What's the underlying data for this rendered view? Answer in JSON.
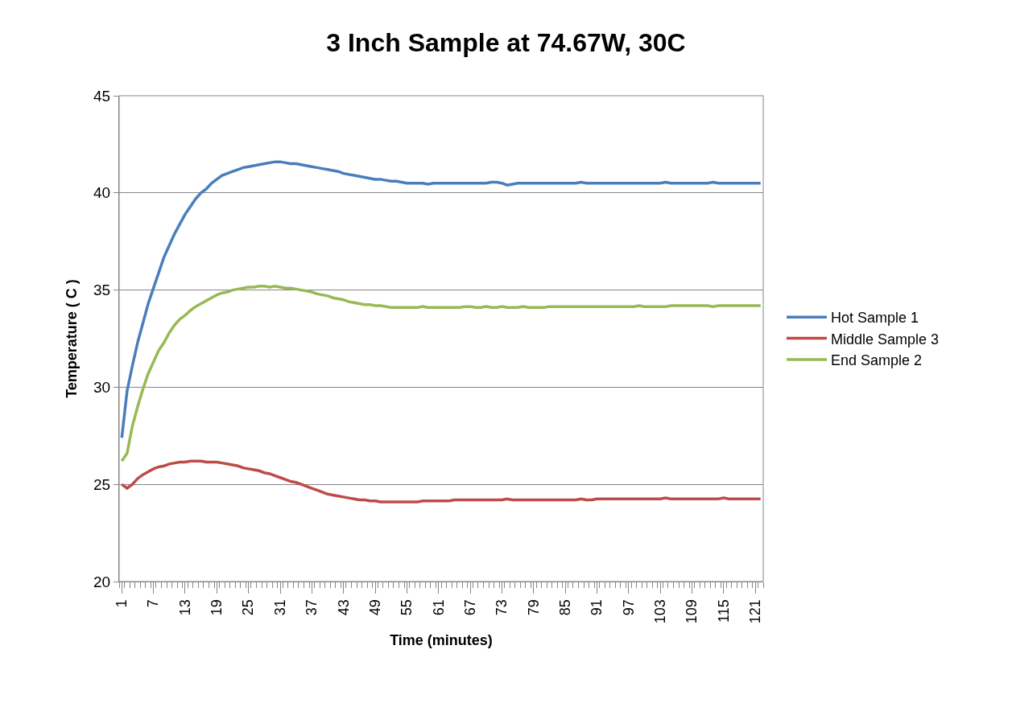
{
  "chart_data": {
    "type": "line",
    "title": "3 Inch Sample at 74.67W, 30C",
    "xlabel": "Time (minutes)",
    "ylabel": "Temperature ( C )",
    "categories": [
      "1",
      null,
      null,
      null,
      null,
      null,
      "7",
      null,
      null,
      null,
      null,
      null,
      "13",
      null,
      null,
      null,
      null,
      null,
      "19",
      null,
      null,
      null,
      null,
      null,
      "25",
      null,
      null,
      null,
      null,
      null,
      "31",
      null,
      null,
      null,
      null,
      null,
      "37",
      null,
      null,
      null,
      null,
      null,
      "43",
      null,
      null,
      null,
      null,
      null,
      "49",
      null,
      null,
      null,
      null,
      null,
      "55",
      null,
      null,
      null,
      null,
      null,
      "61",
      null,
      null,
      null,
      null,
      null,
      "67",
      null,
      null,
      null,
      null,
      null,
      "73",
      null,
      null,
      null,
      null,
      null,
      "79",
      null,
      null,
      null,
      null,
      null,
      "85",
      null,
      null,
      null,
      null,
      null,
      "91",
      null,
      null,
      null,
      null,
      null,
      "97",
      null,
      null,
      null,
      null,
      null,
      "103",
      null,
      null,
      null,
      null,
      null,
      "109",
      null,
      null,
      null,
      null,
      null,
      "115",
      null,
      null,
      null,
      null,
      null,
      "121",
      null
    ],
    "series": [
      {
        "name": "Hot Sample 1",
        "color": "#4a7ebb",
        "values": [
          27.4,
          29.8,
          31.1,
          32.3,
          33.3,
          34.3,
          35.1,
          35.9,
          36.7,
          37.3,
          37.9,
          38.4,
          38.9,
          39.3,
          39.7,
          40.0,
          40.2,
          40.5,
          40.7,
          40.9,
          41.0,
          41.1,
          41.2,
          41.3,
          41.35,
          41.4,
          41.45,
          41.5,
          41.55,
          41.6,
          41.6,
          41.55,
          41.5,
          41.5,
          41.45,
          41.4,
          41.35,
          41.3,
          41.25,
          41.2,
          41.15,
          41.1,
          41.0,
          40.95,
          40.9,
          40.85,
          40.8,
          40.75,
          40.7,
          40.7,
          40.65,
          40.6,
          40.6,
          40.55,
          40.5,
          40.5,
          40.5,
          40.5,
          40.45,
          40.5,
          40.5,
          40.5,
          40.5,
          40.5,
          40.5,
          40.5,
          40.5,
          40.5,
          40.5,
          40.5,
          40.55,
          40.55,
          40.5,
          40.4,
          40.45,
          40.5,
          40.5,
          40.5,
          40.5,
          40.5,
          40.5,
          40.5,
          40.5,
          40.5,
          40.5,
          40.5,
          40.5,
          40.55,
          40.5,
          40.5,
          40.5,
          40.5,
          40.5,
          40.5,
          40.5,
          40.5,
          40.5,
          40.5,
          40.5,
          40.5,
          40.5,
          40.5,
          40.5,
          40.55,
          40.5,
          40.5,
          40.5,
          40.5,
          40.5,
          40.5,
          40.5,
          40.5,
          40.55,
          40.5,
          40.5,
          40.5,
          40.5,
          40.5,
          40.5,
          40.5,
          40.5,
          40.5
        ]
      },
      {
        "name": "Middle Sample 3",
        "color": "#be4b48",
        "values": [
          25.0,
          24.8,
          25.0,
          25.3,
          25.5,
          25.65,
          25.8,
          25.9,
          25.95,
          26.05,
          26.1,
          26.15,
          26.15,
          26.2,
          26.2,
          26.2,
          26.15,
          26.15,
          26.15,
          26.1,
          26.05,
          26.0,
          25.95,
          25.85,
          25.8,
          25.75,
          25.7,
          25.6,
          25.55,
          25.45,
          25.35,
          25.25,
          25.15,
          25.1,
          25.0,
          24.9,
          24.8,
          24.7,
          24.6,
          24.5,
          24.45,
          24.4,
          24.35,
          24.3,
          24.25,
          24.2,
          24.2,
          24.15,
          24.15,
          24.1,
          24.1,
          24.1,
          24.1,
          24.1,
          24.1,
          24.1,
          24.1,
          24.15,
          24.15,
          24.15,
          24.15,
          24.15,
          24.15,
          24.2,
          24.2,
          24.2,
          24.2,
          24.2,
          24.2,
          24.2,
          24.2,
          24.2,
          24.2,
          24.25,
          24.2,
          24.2,
          24.2,
          24.2,
          24.2,
          24.2,
          24.2,
          24.2,
          24.2,
          24.2,
          24.2,
          24.2,
          24.2,
          24.25,
          24.2,
          24.2,
          24.25,
          24.25,
          24.25,
          24.25,
          24.25,
          24.25,
          24.25,
          24.25,
          24.25,
          24.25,
          24.25,
          24.25,
          24.25,
          24.3,
          24.25,
          24.25,
          24.25,
          24.25,
          24.25,
          24.25,
          24.25,
          24.25,
          24.25,
          24.25,
          24.3,
          24.25,
          24.25,
          24.25,
          24.25,
          24.25,
          24.25,
          24.25
        ]
      },
      {
        "name": "End Sample 2",
        "color": "#98b954",
        "values": [
          26.2,
          26.6,
          28.0,
          29.0,
          29.9,
          30.7,
          31.3,
          31.9,
          32.3,
          32.8,
          33.2,
          33.5,
          33.7,
          33.95,
          34.15,
          34.3,
          34.45,
          34.6,
          34.75,
          34.85,
          34.9,
          35.0,
          35.05,
          35.1,
          35.15,
          35.15,
          35.2,
          35.2,
          35.15,
          35.2,
          35.15,
          35.1,
          35.1,
          35.05,
          35.0,
          34.95,
          34.9,
          34.8,
          34.75,
          34.7,
          34.6,
          34.55,
          34.5,
          34.4,
          34.35,
          34.3,
          34.25,
          34.25,
          34.2,
          34.2,
          34.15,
          34.1,
          34.1,
          34.1,
          34.1,
          34.1,
          34.1,
          34.15,
          34.1,
          34.1,
          34.1,
          34.1,
          34.1,
          34.1,
          34.1,
          34.15,
          34.15,
          34.1,
          34.1,
          34.15,
          34.1,
          34.1,
          34.15,
          34.1,
          34.1,
          34.1,
          34.15,
          34.1,
          34.1,
          34.1,
          34.1,
          34.15,
          34.15,
          34.15,
          34.15,
          34.15,
          34.15,
          34.15,
          34.15,
          34.15,
          34.15,
          34.15,
          34.15,
          34.15,
          34.15,
          34.15,
          34.15,
          34.15,
          34.2,
          34.15,
          34.15,
          34.15,
          34.15,
          34.15,
          34.2,
          34.2,
          34.2,
          34.2,
          34.2,
          34.2,
          34.2,
          34.2,
          34.15,
          34.2,
          34.2,
          34.2,
          34.2,
          34.2,
          34.2,
          34.2,
          34.2,
          34.2
        ]
      }
    ],
    "ylim": [
      20,
      45
    ],
    "yticks": [
      20,
      25,
      30,
      35,
      40,
      45
    ],
    "grid": "y",
    "legend": "right",
    "marker": "none",
    "line_style": "solid"
  }
}
